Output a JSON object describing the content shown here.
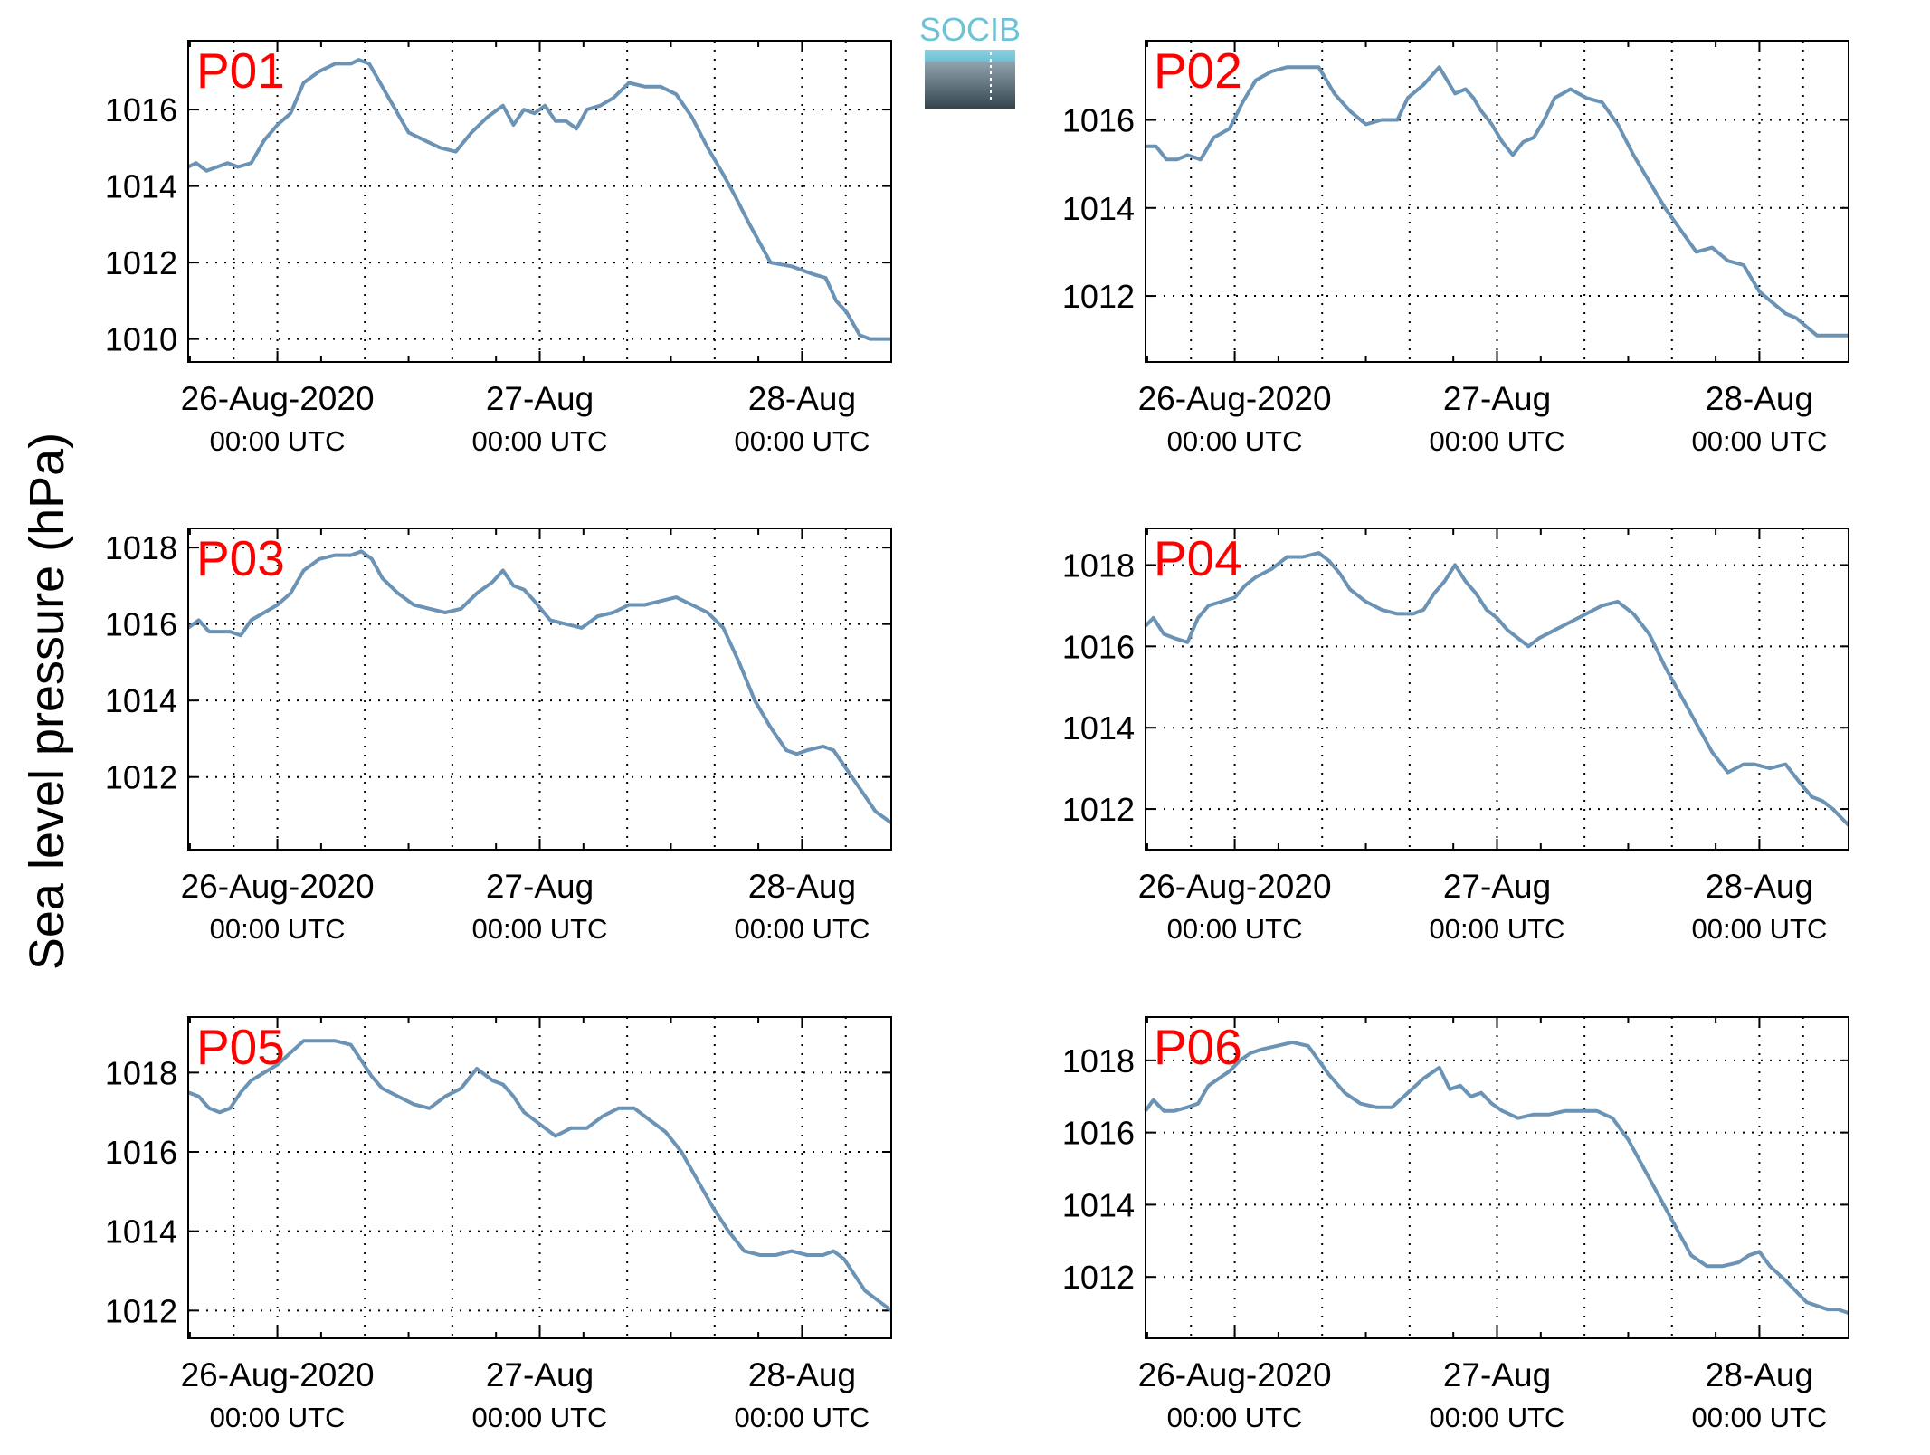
{
  "figure": {
    "ylabel": "Sea level pressure (hPa)",
    "logo_text": "SOCIB",
    "colors": {
      "line": "#6b93b5",
      "panel_label": "#ff0000",
      "axes": "#000000",
      "grid": "#000000"
    }
  },
  "chart_data": [
    {
      "type": "line",
      "label": "P01",
      "xlim": [
        -0.34,
        2.34
      ],
      "ylim": [
        1009.4,
        1017.8
      ],
      "yticks": [
        1010,
        1012,
        1014,
        1016
      ],
      "xtick_labels": [
        {
          "x": 0,
          "line1": "26-Aug-2020",
          "line2": "00:00 UTC"
        },
        {
          "x": 1,
          "line1": "27-Aug",
          "line2": "00:00 UTC"
        },
        {
          "x": 2,
          "line1": "28-Aug",
          "line2": "00:00 UTC"
        }
      ],
      "grid": true,
      "series": [
        {
          "x": [
            -0.34,
            -0.31,
            -0.27,
            -0.23,
            -0.19,
            -0.15,
            -0.1,
            -0.05,
            0.0,
            0.05,
            0.1,
            0.16,
            0.22,
            0.28,
            0.31,
            0.35,
            0.4,
            0.45,
            0.5,
            0.56,
            0.62,
            0.68,
            0.74,
            0.8,
            0.86,
            0.9,
            0.94,
            0.98,
            1.02,
            1.06,
            1.1,
            1.14,
            1.18,
            1.23,
            1.28,
            1.34,
            1.4,
            1.46,
            1.52,
            1.58,
            1.64,
            1.7,
            1.74,
            1.8,
            1.88,
            1.96,
            2.04,
            2.09,
            2.13,
            2.17,
            2.22,
            2.26,
            2.3,
            2.34
          ],
          "y": [
            1014.5,
            1014.6,
            1014.4,
            1014.5,
            1014.6,
            1014.5,
            1014.6,
            1015.2,
            1015.6,
            1015.9,
            1016.7,
            1017.0,
            1017.2,
            1017.2,
            1017.3,
            1017.2,
            1016.6,
            1016.0,
            1015.4,
            1015.2,
            1015.0,
            1014.9,
            1015.4,
            1015.8,
            1016.1,
            1015.6,
            1016.0,
            1015.9,
            1016.1,
            1015.7,
            1015.7,
            1015.5,
            1016.0,
            1016.1,
            1016.3,
            1016.7,
            1016.6,
            1016.6,
            1016.4,
            1015.8,
            1015.0,
            1014.3,
            1013.8,
            1013.0,
            1012.0,
            1011.9,
            1011.7,
            1011.6,
            1011.0,
            1010.7,
            1010.1,
            1010.0,
            1010.0,
            1010.0
          ]
        }
      ]
    },
    {
      "type": "line",
      "label": "P02",
      "xlim": [
        -0.34,
        2.34
      ],
      "ylim": [
        1010.5,
        1017.8
      ],
      "yticks": [
        1012,
        1014,
        1016
      ],
      "xtick_labels": [
        {
          "x": 0,
          "line1": "26-Aug-2020",
          "line2": "00:00 UTC"
        },
        {
          "x": 1,
          "line1": "27-Aug",
          "line2": "00:00 UTC"
        },
        {
          "x": 2,
          "line1": "28-Aug",
          "line2": "00:00 UTC"
        }
      ],
      "grid": true,
      "series": [
        {
          "x": [
            -0.34,
            -0.3,
            -0.26,
            -0.22,
            -0.18,
            -0.13,
            -0.08,
            -0.02,
            0.03,
            0.08,
            0.14,
            0.2,
            0.26,
            0.32,
            0.38,
            0.44,
            0.5,
            0.56,
            0.62,
            0.66,
            0.72,
            0.78,
            0.84,
            0.88,
            0.91,
            0.94,
            0.98,
            1.02,
            1.06,
            1.1,
            1.14,
            1.18,
            1.22,
            1.28,
            1.34,
            1.4,
            1.46,
            1.52,
            1.58,
            1.64,
            1.7,
            1.76,
            1.82,
            1.88,
            1.94,
            2.0,
            2.06,
            2.1,
            2.14,
            2.18,
            2.22,
            2.26,
            2.3,
            2.34
          ],
          "y": [
            1015.4,
            1015.4,
            1015.1,
            1015.1,
            1015.2,
            1015.1,
            1015.6,
            1015.8,
            1016.4,
            1016.9,
            1017.1,
            1017.2,
            1017.2,
            1017.2,
            1016.6,
            1016.2,
            1015.9,
            1016.0,
            1016.0,
            1016.5,
            1016.8,
            1017.2,
            1016.6,
            1016.7,
            1016.5,
            1016.2,
            1015.9,
            1015.5,
            1015.2,
            1015.5,
            1015.6,
            1016.0,
            1016.5,
            1016.7,
            1016.5,
            1016.4,
            1015.9,
            1015.2,
            1014.6,
            1014.0,
            1013.5,
            1013.0,
            1013.1,
            1012.8,
            1012.7,
            1012.1,
            1011.8,
            1011.6,
            1011.5,
            1011.3,
            1011.1,
            1011.1,
            1011.1,
            1011.1
          ]
        }
      ]
    },
    {
      "type": "line",
      "label": "P03",
      "xlim": [
        -0.34,
        2.34
      ],
      "ylim": [
        1010.1,
        1018.5
      ],
      "yticks": [
        1012,
        1014,
        1016,
        1018
      ],
      "xtick_labels": [
        {
          "x": 0,
          "line1": "26-Aug-2020",
          "line2": "00:00 UTC"
        },
        {
          "x": 1,
          "line1": "27-Aug",
          "line2": "00:00 UTC"
        },
        {
          "x": 2,
          "line1": "28-Aug",
          "line2": "00:00 UTC"
        }
      ],
      "grid": true,
      "series": [
        {
          "x": [
            -0.34,
            -0.3,
            -0.26,
            -0.22,
            -0.18,
            -0.14,
            -0.1,
            -0.05,
            0.0,
            0.05,
            0.1,
            0.16,
            0.22,
            0.28,
            0.32,
            0.36,
            0.4,
            0.46,
            0.52,
            0.58,
            0.64,
            0.7,
            0.76,
            0.82,
            0.86,
            0.9,
            0.94,
            0.98,
            1.04,
            1.1,
            1.16,
            1.22,
            1.28,
            1.34,
            1.4,
            1.46,
            1.52,
            1.58,
            1.64,
            1.7,
            1.76,
            1.82,
            1.88,
            1.94,
            1.98,
            2.02,
            2.08,
            2.12,
            2.16,
            2.2,
            2.24,
            2.28,
            2.34
          ],
          "y": [
            1015.9,
            1016.1,
            1015.8,
            1015.8,
            1015.8,
            1015.7,
            1016.1,
            1016.3,
            1016.5,
            1016.8,
            1017.4,
            1017.7,
            1017.8,
            1017.8,
            1017.9,
            1017.7,
            1017.2,
            1016.8,
            1016.5,
            1016.4,
            1016.3,
            1016.4,
            1016.8,
            1017.1,
            1017.4,
            1017.0,
            1016.9,
            1016.6,
            1016.1,
            1016.0,
            1015.9,
            1016.2,
            1016.3,
            1016.5,
            1016.5,
            1016.6,
            1016.7,
            1016.5,
            1016.3,
            1015.9,
            1015.0,
            1014.0,
            1013.3,
            1012.7,
            1012.6,
            1012.7,
            1012.8,
            1012.7,
            1012.3,
            1011.9,
            1011.5,
            1011.1,
            1010.8
          ]
        }
      ]
    },
    {
      "type": "line",
      "label": "P04",
      "xlim": [
        -0.34,
        2.34
      ],
      "ylim": [
        1011.0,
        1018.9
      ],
      "yticks": [
        1012,
        1014,
        1016,
        1018
      ],
      "xtick_labels": [
        {
          "x": 0,
          "line1": "26-Aug-2020",
          "line2": "00:00 UTC"
        },
        {
          "x": 1,
          "line1": "27-Aug",
          "line2": "00:00 UTC"
        },
        {
          "x": 2,
          "line1": "28-Aug",
          "line2": "00:00 UTC"
        }
      ],
      "grid": true,
      "series": [
        {
          "x": [
            -0.34,
            -0.31,
            -0.27,
            -0.23,
            -0.18,
            -0.14,
            -0.1,
            -0.05,
            0.0,
            0.04,
            0.08,
            0.14,
            0.2,
            0.26,
            0.32,
            0.36,
            0.4,
            0.44,
            0.5,
            0.56,
            0.62,
            0.68,
            0.72,
            0.76,
            0.8,
            0.84,
            0.88,
            0.92,
            0.96,
            1.0,
            1.04,
            1.08,
            1.12,
            1.16,
            1.22,
            1.28,
            1.34,
            1.4,
            1.46,
            1.52,
            1.58,
            1.64,
            1.7,
            1.76,
            1.82,
            1.88,
            1.94,
            1.98,
            2.04,
            2.1,
            2.16,
            2.2,
            2.24,
            2.28,
            2.34
          ],
          "y": [
            1016.5,
            1016.7,
            1016.3,
            1016.2,
            1016.1,
            1016.7,
            1017.0,
            1017.1,
            1017.2,
            1017.5,
            1017.7,
            1017.9,
            1018.2,
            1018.2,
            1018.3,
            1018.1,
            1017.8,
            1017.4,
            1017.1,
            1016.9,
            1016.8,
            1016.8,
            1016.9,
            1017.3,
            1017.6,
            1018.0,
            1017.6,
            1017.3,
            1016.9,
            1016.7,
            1016.4,
            1016.2,
            1016.0,
            1016.2,
            1016.4,
            1016.6,
            1016.8,
            1017.0,
            1017.1,
            1016.8,
            1016.3,
            1015.5,
            1014.8,
            1014.1,
            1013.4,
            1012.9,
            1013.1,
            1013.1,
            1013.0,
            1013.1,
            1012.6,
            1012.3,
            1012.2,
            1012.0,
            1011.6
          ]
        }
      ]
    },
    {
      "type": "line",
      "label": "P05",
      "xlim": [
        -0.34,
        2.34
      ],
      "ylim": [
        1011.3,
        1019.4
      ],
      "yticks": [
        1012,
        1014,
        1016,
        1018
      ],
      "xtick_labels": [
        {
          "x": 0,
          "line1": "26-Aug-2020",
          "line2": "00:00 UTC"
        },
        {
          "x": 1,
          "line1": "27-Aug",
          "line2": "00:00 UTC"
        },
        {
          "x": 2,
          "line1": "28-Aug",
          "line2": "00:00 UTC"
        }
      ],
      "grid": true,
      "series": [
        {
          "x": [
            -0.34,
            -0.3,
            -0.26,
            -0.22,
            -0.18,
            -0.14,
            -0.1,
            -0.05,
            0.0,
            0.05,
            0.1,
            0.16,
            0.22,
            0.28,
            0.32,
            0.36,
            0.4,
            0.46,
            0.52,
            0.58,
            0.64,
            0.7,
            0.76,
            0.82,
            0.86,
            0.9,
            0.94,
            1.0,
            1.06,
            1.12,
            1.18,
            1.24,
            1.3,
            1.36,
            1.42,
            1.48,
            1.54,
            1.6,
            1.66,
            1.72,
            1.78,
            1.84,
            1.9,
            1.96,
            2.02,
            2.08,
            2.12,
            2.16,
            2.2,
            2.24,
            2.28,
            2.34
          ],
          "y": [
            1017.5,
            1017.4,
            1017.1,
            1017.0,
            1017.1,
            1017.5,
            1017.8,
            1018.0,
            1018.2,
            1018.5,
            1018.8,
            1018.8,
            1018.8,
            1018.7,
            1018.3,
            1017.9,
            1017.6,
            1017.4,
            1017.2,
            1017.1,
            1017.4,
            1017.6,
            1018.1,
            1017.8,
            1017.7,
            1017.4,
            1017.0,
            1016.7,
            1016.4,
            1016.6,
            1016.6,
            1016.9,
            1017.1,
            1017.1,
            1016.8,
            1016.5,
            1016.0,
            1015.3,
            1014.6,
            1014.0,
            1013.5,
            1013.4,
            1013.4,
            1013.5,
            1013.4,
            1013.4,
            1013.5,
            1013.3,
            1012.9,
            1012.5,
            1012.3,
            1012.0
          ]
        }
      ]
    },
    {
      "type": "line",
      "label": "P06",
      "xlim": [
        -0.34,
        2.34
      ],
      "ylim": [
        1010.3,
        1019.2
      ],
      "yticks": [
        1012,
        1014,
        1016,
        1018
      ],
      "xtick_labels": [
        {
          "x": 0,
          "line1": "26-Aug-2020",
          "line2": "00:00 UTC"
        },
        {
          "x": 1,
          "line1": "27-Aug",
          "line2": "00:00 UTC"
        },
        {
          "x": 2,
          "line1": "28-Aug",
          "line2": "00:00 UTC"
        }
      ],
      "grid": true,
      "series": [
        {
          "x": [
            -0.34,
            -0.31,
            -0.27,
            -0.23,
            -0.18,
            -0.14,
            -0.1,
            -0.06,
            -0.02,
            0.02,
            0.06,
            0.1,
            0.16,
            0.22,
            0.28,
            0.32,
            0.36,
            0.42,
            0.48,
            0.54,
            0.6,
            0.66,
            0.72,
            0.78,
            0.82,
            0.86,
            0.9,
            0.94,
            0.98,
            1.02,
            1.08,
            1.14,
            1.2,
            1.26,
            1.32,
            1.38,
            1.44,
            1.5,
            1.56,
            1.62,
            1.68,
            1.74,
            1.8,
            1.86,
            1.92,
            1.96,
            2.0,
            2.04,
            2.1,
            2.14,
            2.18,
            2.22,
            2.26,
            2.3,
            2.34
          ],
          "y": [
            1016.6,
            1016.9,
            1016.6,
            1016.6,
            1016.7,
            1016.8,
            1017.3,
            1017.5,
            1017.7,
            1018.0,
            1018.2,
            1018.3,
            1018.4,
            1018.5,
            1018.4,
            1018.0,
            1017.6,
            1017.1,
            1016.8,
            1016.7,
            1016.7,
            1017.1,
            1017.5,
            1017.8,
            1017.2,
            1017.3,
            1017.0,
            1017.1,
            1016.8,
            1016.6,
            1016.4,
            1016.5,
            1016.5,
            1016.6,
            1016.6,
            1016.6,
            1016.4,
            1015.8,
            1015.0,
            1014.2,
            1013.4,
            1012.6,
            1012.3,
            1012.3,
            1012.4,
            1012.6,
            1012.7,
            1012.3,
            1011.9,
            1011.6,
            1011.3,
            1011.2,
            1011.1,
            1011.1,
            1011.0
          ]
        }
      ]
    }
  ]
}
